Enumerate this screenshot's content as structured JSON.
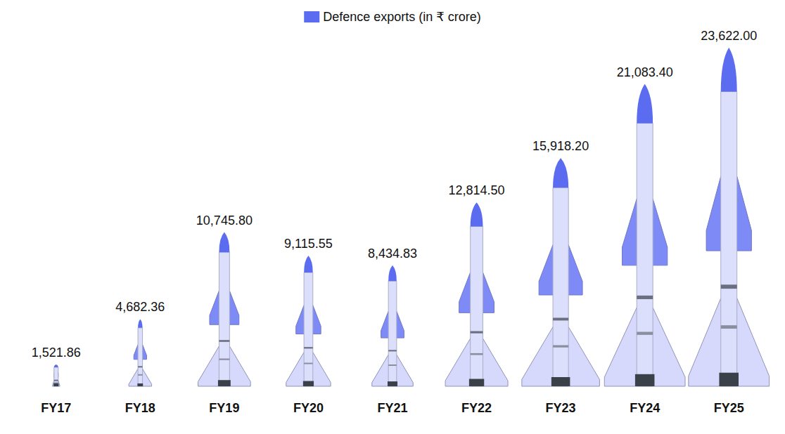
{
  "chart_data": {
    "type": "bar",
    "series_name": "Defence exports (in ₹ crore)",
    "categories": [
      "FY17",
      "FY18",
      "FY19",
      "FY20",
      "FY21",
      "FY22",
      "FY23",
      "FY24",
      "FY25"
    ],
    "values": [
      1521.86,
      4682.36,
      10745.8,
      9115.55,
      8434.83,
      12814.5,
      15918.2,
      21083.4,
      23622.0
    ],
    "value_labels": [
      "1,521.86",
      "4,682.36",
      "10,745.80",
      "9,115.55",
      "8,434.83",
      "12,814.50",
      "15,918.20",
      "21,083.40",
      "23,622.00"
    ],
    "color": "#5b6cf0",
    "ylim": [
      0,
      24000
    ],
    "grid": false,
    "legend": "top",
    "data_labels": true,
    "tick_labels": "x"
  }
}
